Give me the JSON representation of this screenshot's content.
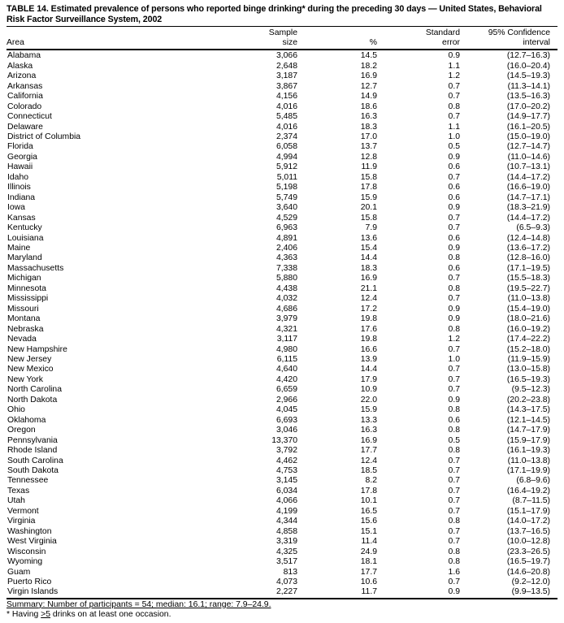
{
  "title": {
    "line1": "TABLE 14. Estimated prevalence of persons who reported binge drinking* during the preceding 30 days — United States, Behavioral",
    "line2": "Risk Factor Surveillance System, 2002"
  },
  "table": {
    "columns": [
      {
        "label": "Area"
      },
      {
        "label": "Sample\nsize"
      },
      {
        "label": "%"
      },
      {
        "label": "Standard\nerror"
      },
      {
        "label": "95% Confidence\ninterval"
      }
    ],
    "rows": [
      [
        "Alabama",
        "3,066",
        "14.5",
        "0.9",
        "(12.7–16.3)"
      ],
      [
        "Alaska",
        "2,648",
        "18.2",
        "1.1",
        "(16.0–20.4)"
      ],
      [
        "Arizona",
        "3,187",
        "16.9",
        "1.2",
        "(14.5–19.3)"
      ],
      [
        "Arkansas",
        "3,867",
        "12.7",
        "0.7",
        "(11.3–14.1)"
      ],
      [
        "California",
        "4,156",
        "14.9",
        "0.7",
        "(13.5–16.3)"
      ],
      [
        "Colorado",
        "4,016",
        "18.6",
        "0.8",
        "(17.0–20.2)"
      ],
      [
        "Connecticut",
        "5,485",
        "16.3",
        "0.7",
        "(14.9–17.7)"
      ],
      [
        "Delaware",
        "4,016",
        "18.3",
        "1.1",
        "(16.1–20.5)"
      ],
      [
        "District of Columbia",
        "2,374",
        "17.0",
        "1.0",
        "(15.0–19.0)"
      ],
      [
        "Florida",
        "6,058",
        "13.7",
        "0.5",
        "(12.7–14.7)"
      ],
      [
        "Georgia",
        "4,994",
        "12.8",
        "0.9",
        "(11.0–14.6)"
      ],
      [
        "Hawaii",
        "5,912",
        "11.9",
        "0.6",
        "(10.7–13.1)"
      ],
      [
        "Idaho",
        "5,011",
        "15.8",
        "0.7",
        "(14.4–17.2)"
      ],
      [
        "Illinois",
        "5,198",
        "17.8",
        "0.6",
        "(16.6–19.0)"
      ],
      [
        "Indiana",
        "5,749",
        "15.9",
        "0.6",
        "(14.7–17.1)"
      ],
      [
        "Iowa",
        "3,640",
        "20.1",
        "0.9",
        "(18.3–21.9)"
      ],
      [
        "Kansas",
        "4,529",
        "15.8",
        "0.7",
        "(14.4–17.2)"
      ],
      [
        "Kentucky",
        "6,963",
        "7.9",
        "0.7",
        "(6.5–9.3)"
      ],
      [
        "Louisiana",
        "4,891",
        "13.6",
        "0.6",
        "(12.4–14.8)"
      ],
      [
        "Maine",
        "2,406",
        "15.4",
        "0.9",
        "(13.6–17.2)"
      ],
      [
        "Maryland",
        "4,363",
        "14.4",
        "0.8",
        "(12.8–16.0)"
      ],
      [
        "Massachusetts",
        "7,338",
        "18.3",
        "0.6",
        "(17.1–19.5)"
      ],
      [
        "Michigan",
        "5,880",
        "16.9",
        "0.7",
        "(15.5–18.3)"
      ],
      [
        "Minnesota",
        "4,438",
        "21.1",
        "0.8",
        "(19.5–22.7)"
      ],
      [
        "Mississippi",
        "4,032",
        "12.4",
        "0.7",
        "(11.0–13.8)"
      ],
      [
        "Missouri",
        "4,686",
        "17.2",
        "0.9",
        "(15.4–19.0)"
      ],
      [
        "Montana",
        "3,979",
        "19.8",
        "0.9",
        "(18.0–21.6)"
      ],
      [
        "Nebraska",
        "4,321",
        "17.6",
        "0.8",
        "(16.0–19.2)"
      ],
      [
        "Nevada",
        "3,117",
        "19.8",
        "1.2",
        "(17.4–22.2)"
      ],
      [
        "New Hampshire",
        "4,980",
        "16.6",
        "0.7",
        "(15.2–18.0)"
      ],
      [
        "New Jersey",
        "6,115",
        "13.9",
        "1.0",
        "(11.9–15.9)"
      ],
      [
        "New Mexico",
        "4,640",
        "14.4",
        "0.7",
        "(13.0–15.8)"
      ],
      [
        "New York",
        "4,420",
        "17.9",
        "0.7",
        "(16.5–19.3)"
      ],
      [
        "North Carolina",
        "6,659",
        "10.9",
        "0.7",
        "(9.5–12.3)"
      ],
      [
        "North Dakota",
        "2,966",
        "22.0",
        "0.9",
        "(20.2–23.8)"
      ],
      [
        "Ohio",
        "4,045",
        "15.9",
        "0.8",
        "(14.3–17.5)"
      ],
      [
        "Oklahoma",
        "6,693",
        "13.3",
        "0.6",
        "(12.1–14.5)"
      ],
      [
        "Oregon",
        "3,046",
        "16.3",
        "0.8",
        "(14.7–17.9)"
      ],
      [
        "Pennsylvania",
        "13,370",
        "16.9",
        "0.5",
        "(15.9–17.9)"
      ],
      [
        "Rhode Island",
        "3,792",
        "17.7",
        "0.8",
        "(16.1–19.3)"
      ],
      [
        "South Carolina",
        "4,462",
        "12.4",
        "0.7",
        "(11.0–13.8)"
      ],
      [
        "South Dakota",
        "4,753",
        "18.5",
        "0.7",
        "(17.1–19.9)"
      ],
      [
        "Tennessee",
        "3,145",
        "8.2",
        "0.7",
        "(6.8–9.6)"
      ],
      [
        "Texas",
        "6,034",
        "17.8",
        "0.7",
        "(16.4–19.2)"
      ],
      [
        "Utah",
        "4,066",
        "10.1",
        "0.7",
        "(8.7–11.5)"
      ],
      [
        "Vermont",
        "4,199",
        "16.5",
        "0.7",
        "(15.1–17.9)"
      ],
      [
        "Virginia",
        "4,344",
        "15.6",
        "0.8",
        "(14.0–17.2)"
      ],
      [
        "Washington",
        "4,858",
        "15.1",
        "0.7",
        "(13.7–16.5)"
      ],
      [
        "West Virginia",
        "3,319",
        "11.4",
        "0.7",
        "(10.0–12.8)"
      ],
      [
        "Wisconsin",
        "4,325",
        "24.9",
        "0.8",
        "(23.3–26.5)"
      ],
      [
        "Wyoming",
        "3,517",
        "18.1",
        "0.8",
        "(16.5–19.7)"
      ],
      [
        "Guam",
        "813",
        "17.7",
        "1.6",
        "(14.6–20.8)"
      ],
      [
        "Puerto Rico",
        "4,073",
        "10.6",
        "0.7",
        "(9.2–12.0)"
      ],
      [
        "Virgin Islands",
        "2,227",
        "11.7",
        "0.9",
        "(9.9–13.5)"
      ]
    ]
  },
  "footer": {
    "summary": "Summary: Number of participants = 54; median: 16.1; range: 7.9–24.9.",
    "footnote_prefix": "* Having ",
    "footnote_geq": ">5",
    "footnote_suffix": " drinks on at least one occasion."
  }
}
